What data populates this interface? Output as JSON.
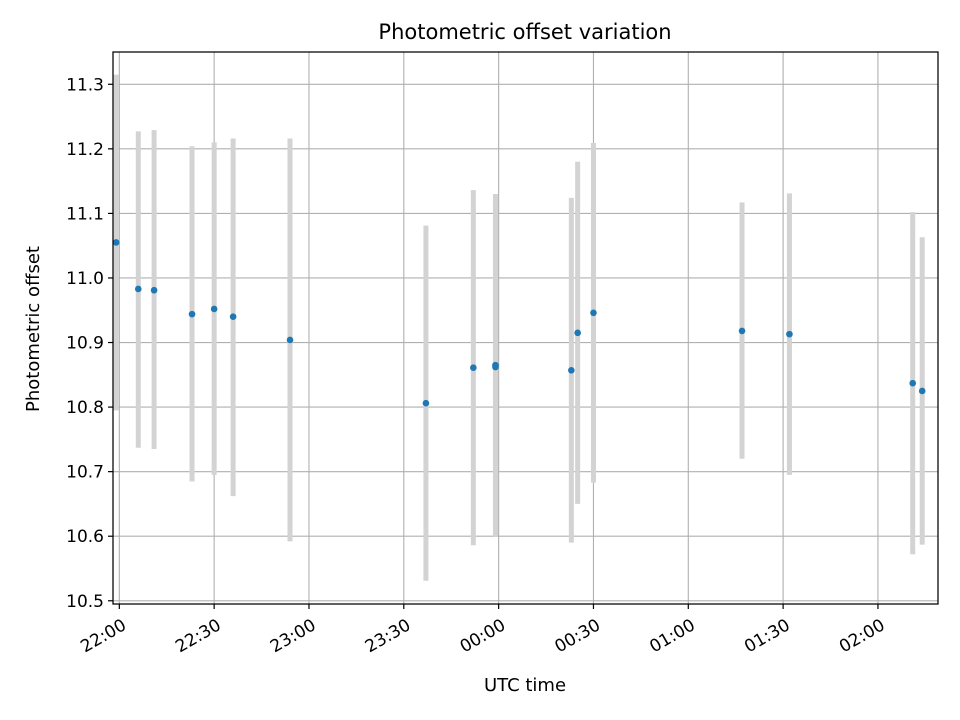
{
  "chart_data": {
    "type": "scatter",
    "title": "Photometric offset variation",
    "xlabel": "UTC time",
    "ylabel": "Photometric offset",
    "x_axis": "time",
    "xlim": [
      "21:58",
      "02:19"
    ],
    "ylim": [
      10.495,
      11.35
    ],
    "yticks": [
      10.5,
      10.6,
      10.7,
      10.8,
      10.9,
      11.0,
      11.1,
      11.2,
      11.3
    ],
    "xticks": [
      "22:00",
      "22:30",
      "23:00",
      "23:30",
      "00:00",
      "00:30",
      "01:00",
      "01:30",
      "02:00"
    ],
    "grid": true,
    "colors": {
      "points": "#1f77b4",
      "errorbars": "#d3d3d3",
      "grid": "#b0b0b0"
    },
    "series": [
      {
        "points": [
          {
            "time": "21:59",
            "y": 11.055,
            "ylow": 10.795,
            "yhigh": 11.315
          },
          {
            "time": "22:06",
            "y": 10.983,
            "ylow": 10.737,
            "yhigh": 11.227
          },
          {
            "time": "22:11",
            "y": 10.981,
            "ylow": 10.735,
            "yhigh": 11.229
          },
          {
            "time": "22:23",
            "y": 10.944,
            "ylow": 10.685,
            "yhigh": 11.204
          },
          {
            "time": "22:30",
            "y": 10.952,
            "ylow": 10.695,
            "yhigh": 11.21
          },
          {
            "time": "22:36",
            "y": 10.94,
            "ylow": 10.662,
            "yhigh": 11.216
          },
          {
            "time": "22:54",
            "y": 10.904,
            "ylow": 10.592,
            "yhigh": 11.216
          },
          {
            "time": "23:37",
            "y": 10.806,
            "ylow": 10.531,
            "yhigh": 11.081
          },
          {
            "time": "23:52",
            "y": 10.861,
            "ylow": 10.586,
            "yhigh": 11.136
          },
          {
            "time": "23:59",
            "y": 10.865,
            "ylow": 10.6,
            "yhigh": 11.13
          },
          {
            "time": "23:59",
            "y": 10.862,
            "ylow": 10.6,
            "yhigh": 11.122
          },
          {
            "time": "00:23",
            "y": 10.857,
            "ylow": 10.59,
            "yhigh": 11.124
          },
          {
            "time": "00:25",
            "y": 10.915,
            "ylow": 10.65,
            "yhigh": 11.18
          },
          {
            "time": "00:30",
            "y": 10.946,
            "ylow": 10.683,
            "yhigh": 11.209
          },
          {
            "time": "01:17",
            "y": 10.918,
            "ylow": 10.72,
            "yhigh": 11.117
          },
          {
            "time": "01:32",
            "y": 10.913,
            "ylow": 10.695,
            "yhigh": 11.131
          },
          {
            "time": "02:11",
            "y": 10.837,
            "ylow": 10.572,
            "yhigh": 11.102
          },
          {
            "time": "02:14",
            "y": 10.825,
            "ylow": 10.587,
            "yhigh": 11.063
          }
        ]
      }
    ]
  }
}
